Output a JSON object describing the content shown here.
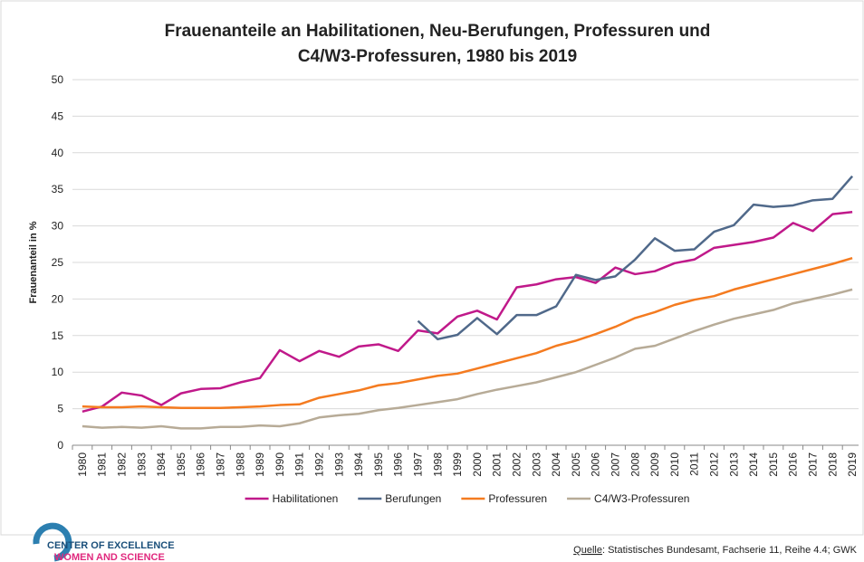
{
  "chart_data": {
    "type": "line",
    "title": [
      "Frauenanteile an Habilitationen, Neu-Berufungen, Professuren und",
      "C4/W3-Professuren, 1980 bis 2019"
    ],
    "ylabel": "Frauenanteil in %",
    "categories": [
      "1980",
      "1981",
      "1982",
      "1983",
      "1984",
      "1985",
      "1986",
      "1987",
      "1988",
      "1989",
      "1990",
      "1991",
      "1992",
      "1993",
      "1994",
      "1995",
      "1996",
      "1997",
      "1998",
      "1999",
      "2000",
      "2001",
      "2002",
      "2003",
      "2004",
      "2005",
      "2006",
      "2007",
      "2008",
      "2009",
      "2010",
      "2011",
      "2012",
      "2013",
      "2014",
      "2015",
      "2016",
      "2017",
      "2018",
      "2019"
    ],
    "series": [
      {
        "name": "Habilitationen",
        "color": "#c0198a",
        "values": [
          4.6,
          5.3,
          7.2,
          6.8,
          5.5,
          7.1,
          7.7,
          7.8,
          8.6,
          9.2,
          13.0,
          11.5,
          12.9,
          12.1,
          13.5,
          13.8,
          12.9,
          15.7,
          15.3,
          17.6,
          18.4,
          17.2,
          21.6,
          22.0,
          22.7,
          23.0,
          22.2,
          24.3,
          23.4,
          23.8,
          24.9,
          25.4,
          27.0,
          27.4,
          27.8,
          28.4,
          30.4,
          29.3,
          31.6,
          31.9
        ]
      },
      {
        "name": "Berufungen",
        "color": "#50698a",
        "values": [
          null,
          null,
          null,
          null,
          null,
          null,
          null,
          null,
          null,
          null,
          null,
          null,
          null,
          null,
          null,
          null,
          null,
          17.0,
          14.5,
          15.1,
          17.4,
          15.2,
          17.8,
          17.8,
          19.0,
          23.3,
          22.6,
          23.1,
          25.4,
          28.3,
          26.6,
          26.8,
          29.2,
          30.1,
          32.9,
          32.6,
          32.8,
          33.5,
          33.7,
          36.8
        ]
      },
      {
        "name": "Professuren",
        "color": "#f47b20",
        "values": [
          5.3,
          5.2,
          5.2,
          5.3,
          5.2,
          5.1,
          5.1,
          5.1,
          5.2,
          5.3,
          5.5,
          5.6,
          6.5,
          7.0,
          7.5,
          8.2,
          8.5,
          9.0,
          9.5,
          9.8,
          10.5,
          11.2,
          11.9,
          12.6,
          13.6,
          14.3,
          15.2,
          16.2,
          17.4,
          18.2,
          19.2,
          19.9,
          20.4,
          21.3,
          22.0,
          22.7,
          23.4,
          24.1,
          24.8,
          25.6
        ]
      },
      {
        "name": "C4/W3-Professuren",
        "color": "#b7ab97",
        "values": [
          2.6,
          2.4,
          2.5,
          2.4,
          2.6,
          2.3,
          2.3,
          2.5,
          2.5,
          2.7,
          2.6,
          3.0,
          3.8,
          4.1,
          4.3,
          4.8,
          5.1,
          5.5,
          5.9,
          6.3,
          7.0,
          7.6,
          8.1,
          8.6,
          9.3,
          10.0,
          11.0,
          12.0,
          13.2,
          13.6,
          14.6,
          15.6,
          16.5,
          17.3,
          17.9,
          18.5,
          19.4,
          20.0,
          20.6,
          21.3
        ]
      }
    ],
    "ylim": [
      0,
      50
    ],
    "yticks": [
      0,
      5,
      10,
      15,
      20,
      25,
      30,
      35,
      40,
      45,
      50
    ],
    "grid": true,
    "legend": "bottom"
  },
  "logo": {
    "line1": "CENTER OF EXCELLENCE",
    "line2": "WOMEN AND SCIENCE"
  },
  "source": {
    "label": "Quelle",
    "text": ": Statistisches Bundesamt, Fachserie 11, Reihe 4.4; GWK"
  }
}
